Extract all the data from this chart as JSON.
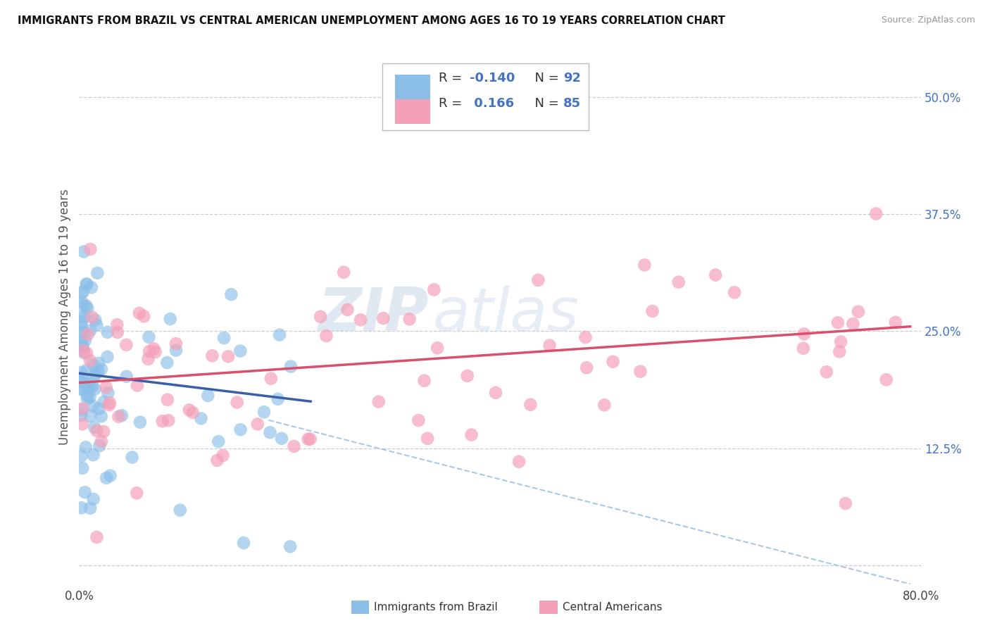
{
  "title": "IMMIGRANTS FROM BRAZIL VS CENTRAL AMERICAN UNEMPLOYMENT AMONG AGES 16 TO 19 YEARS CORRELATION CHART",
  "source": "Source: ZipAtlas.com",
  "ylabel": "Unemployment Among Ages 16 to 19 years",
  "xlim": [
    0.0,
    0.8
  ],
  "ylim": [
    -0.02,
    0.55
  ],
  "ytick_positions": [
    0.0,
    0.125,
    0.25,
    0.375,
    0.5
  ],
  "yticklabels_right": [
    "",
    "12.5%",
    "25.0%",
    "37.5%",
    "50.0%"
  ],
  "color_brazil": "#8bbfe8",
  "color_central": "#f4a0b8",
  "color_brazil_line": "#3a5fa8",
  "color_central_line": "#d94f6e",
  "color_dashed": "#a8c8e8",
  "brazil_line_x0": 0.0,
  "brazil_line_y0": 0.205,
  "brazil_line_x1": 0.22,
  "brazil_line_y1": 0.175,
  "central_line_x0": 0.0,
  "central_line_y0": 0.195,
  "central_line_x1": 0.79,
  "central_line_y1": 0.255,
  "dashed_line_x0": 0.18,
  "dashed_line_y0": 0.155,
  "dashed_line_x1": 0.79,
  "dashed_line_y1": -0.02
}
